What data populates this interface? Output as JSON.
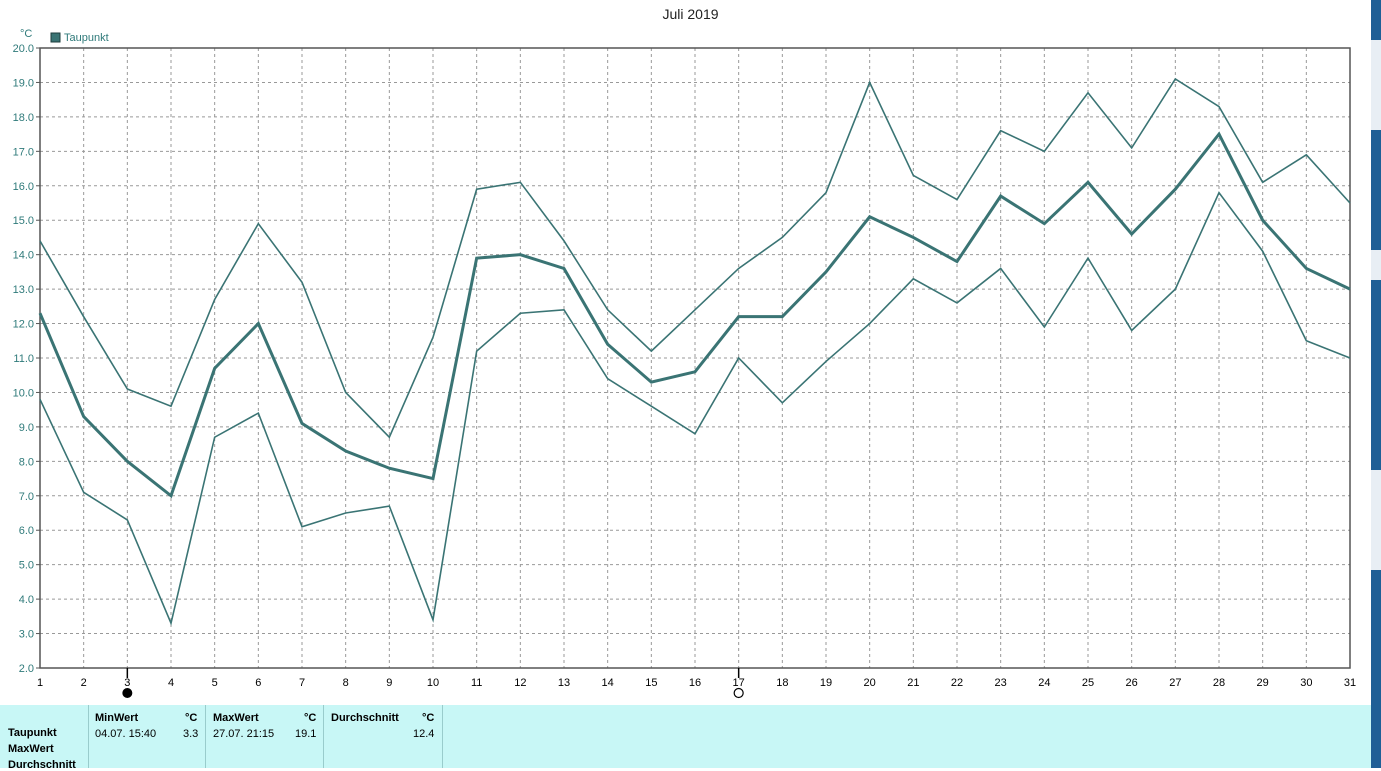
{
  "chart_data": {
    "type": "line",
    "title": "Juli 2019",
    "ylabel": "°C",
    "legend": [
      "Taupunkt"
    ],
    "legend_position": "top-left",
    "grid": true,
    "ylim": [
      2.0,
      20.0
    ],
    "yticks": [
      "2.0",
      "3.0",
      "4.0",
      "5.0",
      "6.0",
      "7.0",
      "8.0",
      "9.0",
      "10.0",
      "11.0",
      "12.0",
      "13.0",
      "14.0",
      "15.0",
      "16.0",
      "17.0",
      "18.0",
      "19.0",
      "20.0"
    ],
    "x": [
      1,
      2,
      3,
      4,
      5,
      6,
      7,
      8,
      9,
      10,
      11,
      12,
      13,
      14,
      15,
      16,
      17,
      18,
      19,
      20,
      21,
      22,
      23,
      24,
      25,
      26,
      27,
      28,
      29,
      30,
      31
    ],
    "series": [
      {
        "name": "Taupunkt",
        "role": "avg",
        "values": [
          12.3,
          9.3,
          8.0,
          7.0,
          10.7,
          12.0,
          9.1,
          8.3,
          7.8,
          7.5,
          13.9,
          14.0,
          13.6,
          11.4,
          10.3,
          10.6,
          12.2,
          12.2,
          13.5,
          15.1,
          14.5,
          13.8,
          15.7,
          14.9,
          16.1,
          14.6,
          15.9,
          17.5,
          15.0,
          13.6,
          13.0
        ]
      },
      {
        "role": "max",
        "values": [
          14.4,
          12.2,
          10.1,
          9.6,
          12.7,
          14.9,
          13.2,
          10.0,
          8.7,
          11.6,
          15.9,
          16.1,
          14.4,
          12.4,
          11.2,
          12.4,
          13.6,
          14.5,
          15.8,
          19.0,
          16.3,
          15.6,
          17.6,
          17.0,
          18.7,
          17.1,
          19.1,
          18.3,
          16.1,
          16.9,
          15.5
        ]
      },
      {
        "role": "min",
        "values": [
          9.8,
          7.1,
          6.3,
          3.3,
          8.7,
          9.4,
          6.1,
          6.5,
          6.7,
          3.4,
          11.2,
          12.3,
          12.4,
          10.4,
          9.6,
          8.8,
          11.0,
          9.7,
          10.9,
          12.0,
          13.3,
          12.6,
          13.6,
          11.9,
          13.9,
          11.8,
          13.0,
          15.8,
          14.1,
          11.5,
          11.0
        ]
      }
    ],
    "colors": {
      "line": "#3a7474",
      "grid": "#999999",
      "axis": "#555555",
      "tick_text": "#000000",
      "y_text": "#2f7a7a"
    },
    "markers": [
      {
        "x": 3,
        "symbol": "full-moon"
      },
      {
        "x": 17,
        "symbol": "new-moon"
      }
    ]
  },
  "stats": {
    "rows": [
      "Taupunkt",
      "MaxWert",
      "Durchschnitt"
    ],
    "columns": [
      {
        "header": "MinWert",
        "unit": "°C",
        "date": "04.07.  15:40",
        "value": "3.3"
      },
      {
        "header": "MaxWert",
        "unit": "°C",
        "date": "27.07.  21:15",
        "value": "19.1"
      },
      {
        "header": "Durchschnitt",
        "unit": "°C",
        "date": "",
        "value": "12.4"
      }
    ]
  }
}
